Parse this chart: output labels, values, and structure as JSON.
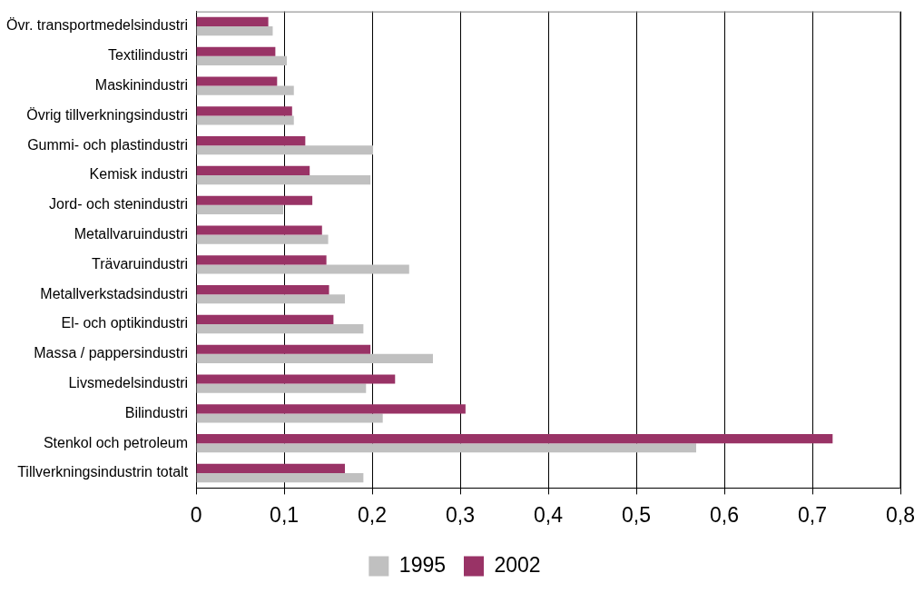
{
  "chart_data": {
    "type": "bar",
    "orientation": "horizontal",
    "categories": [
      "Övr. transportmedelsindustri",
      "Textilindustri",
      "Maskinindustri",
      "Övrig tillverkningsindustri",
      "Gummi- och plastindustri",
      "Kemisk industri",
      "Jord- och stenindustri",
      "Metallvaruindustri",
      "Trävaruindustri",
      "Metallverkstadsindustri",
      "El- och optikindustri",
      "Massa / pappersindustri",
      "Livsmedelsindustri",
      "Bilindustri",
      "Stenkol och petroleum",
      "Tillverkningsindustrin totalt"
    ],
    "series": [
      {
        "name": "1995",
        "color": "#c0c0c0",
        "values": [
          0.087,
          0.103,
          0.111,
          0.111,
          0.201,
          0.198,
          0.099,
          0.15,
          0.242,
          0.169,
          0.19,
          0.269,
          0.193,
          0.212,
          0.568,
          0.19
        ]
      },
      {
        "name": "2002",
        "color": "#993366",
        "values": [
          0.082,
          0.09,
          0.092,
          0.109,
          0.124,
          0.129,
          0.132,
          0.143,
          0.148,
          0.151,
          0.156,
          0.198,
          0.226,
          0.306,
          0.723,
          0.169
        ]
      }
    ],
    "xlim": [
      0,
      0.8
    ],
    "xticks": [
      {
        "value": 0,
        "label": "0"
      },
      {
        "value": 0.1,
        "label": "0,1"
      },
      {
        "value": 0.2,
        "label": "0,2"
      },
      {
        "value": 0.3,
        "label": "0,3"
      },
      {
        "value": 0.4,
        "label": "0,4"
      },
      {
        "value": 0.5,
        "label": "0,5"
      },
      {
        "value": 0.6,
        "label": "0,6"
      },
      {
        "value": 0.7,
        "label": "0,7"
      },
      {
        "value": 0.8,
        "label": "0,8"
      }
    ],
    "grid": "x",
    "legend": "bottom"
  }
}
